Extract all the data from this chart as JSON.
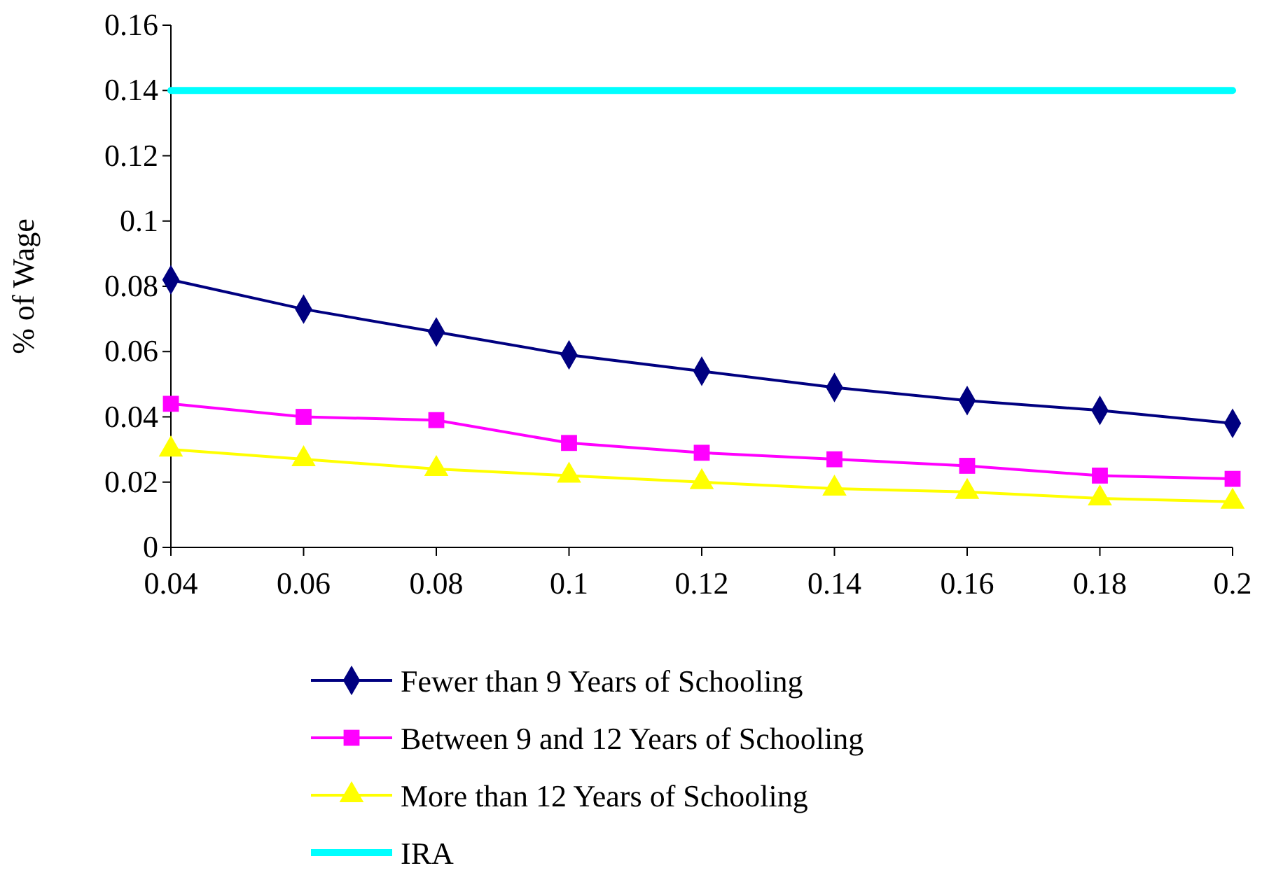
{
  "chart_data": {
    "type": "line",
    "ylabel": "% of Wage",
    "x": [
      0.04,
      0.06,
      0.08,
      0.1,
      0.12,
      0.14,
      0.16,
      0.18,
      0.2
    ],
    "xlim": [
      0.04,
      0.2
    ],
    "xticks": [
      0.04,
      0.06,
      0.08,
      0.1,
      0.12,
      0.14,
      0.16,
      0.18,
      0.2
    ],
    "ylim": [
      0,
      0.16
    ],
    "yticks": [
      0,
      0.02,
      0.04,
      0.06,
      0.08,
      0.1,
      0.12,
      0.14,
      0.16
    ],
    "grid": false,
    "legend": "bottom",
    "line_style": "solid",
    "series": [
      {
        "name": "Fewer than 9 Years of Schooling",
        "color": "#000080",
        "marker": "diamond",
        "values": [
          0.082,
          0.073,
          0.066,
          0.059,
          0.054,
          0.049,
          0.045,
          0.042,
          0.038
        ]
      },
      {
        "name": "Between 9 and 12 Years of Schooling",
        "color": "#ff00ff",
        "marker": "square",
        "values": [
          0.044,
          0.04,
          0.039,
          0.032,
          0.029,
          0.027,
          0.025,
          0.022,
          0.021
        ]
      },
      {
        "name": "More than 12 Years of Schooling",
        "color": "#ffff00",
        "marker": "triangle",
        "values": [
          0.03,
          0.027,
          0.024,
          0.022,
          0.02,
          0.018,
          0.017,
          0.015,
          0.014
        ]
      },
      {
        "name": "IRA",
        "color": "#00ffff",
        "marker": "none",
        "values": [
          0.14,
          0.14,
          0.14,
          0.14,
          0.14,
          0.14,
          0.14,
          0.14,
          0.14
        ]
      }
    ]
  }
}
